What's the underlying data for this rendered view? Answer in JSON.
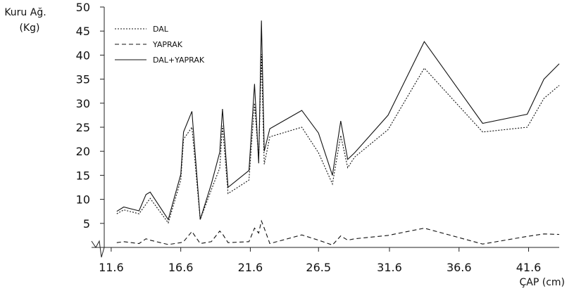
{
  "chart_data": {
    "type": "line",
    "ylabel_line1": "Kuru Ağ.",
    "ylabel_line2": "(Kg)",
    "xlabel": "ÇAP (cm)",
    "ylim": [
      0,
      50
    ],
    "xlim": [
      11.1,
      43.8
    ],
    "yticks": [
      5,
      10,
      15,
      20,
      25,
      30,
      35,
      40,
      45,
      50
    ],
    "xticks": [
      11.6,
      16.6,
      21.6,
      26.5,
      31.6,
      36.6,
      41.6
    ],
    "xtick_labels": [
      "11.6",
      "16.6",
      "21.6",
      "26.5",
      "31.6",
      "36.6",
      "41.6"
    ],
    "legend_position": "top-left",
    "series": [
      {
        "name": "DAL",
        "dash": "2,2",
        "x": [
          12.0,
          12.5,
          13.6,
          14.1,
          14.4,
          15.7,
          16.6,
          16.8,
          17.4,
          18.0,
          18.8,
          19.4,
          19.6,
          20.0,
          21.5,
          21.9,
          22.2,
          22.4,
          22.6,
          23.0,
          25.3,
          26.5,
          27.5,
          28.1,
          28.6,
          29.1,
          31.5,
          34.1,
          38.3,
          41.5,
          42.7,
          43.8
        ],
        "y": [
          7.0,
          7.8,
          7.0,
          9.0,
          10.2,
          5.1,
          14.0,
          22.5,
          25.0,
          5.8,
          12.0,
          16.5,
          25.3,
          11.2,
          14.0,
          30.0,
          18.3,
          40.2,
          17.3,
          23.0,
          25.0,
          19.7,
          13.2,
          23.3,
          16.6,
          18.8,
          24.5,
          37.3,
          24.0,
          25.0,
          31.0,
          33.7
        ]
      },
      {
        "name": "YAPRAK",
        "dash": "6,4",
        "x": [
          12.0,
          12.5,
          13.6,
          14.1,
          14.4,
          15.7,
          16.6,
          16.8,
          17.4,
          18.0,
          18.8,
          19.4,
          19.6,
          20.0,
          21.5,
          21.9,
          22.2,
          22.4,
          22.6,
          23.0,
          25.3,
          26.5,
          27.5,
          28.1,
          28.6,
          29.1,
          31.5,
          34.1,
          38.3,
          41.5,
          42.7,
          43.8
        ],
        "y": [
          1.0,
          1.2,
          0.8,
          1.8,
          1.5,
          0.6,
          1.0,
          1.2,
          3.3,
          0.8,
          1.2,
          3.4,
          2.8,
          1.0,
          1.2,
          4.0,
          3.0,
          5.5,
          4.0,
          0.8,
          2.6,
          1.5,
          0.5,
          2.4,
          1.5,
          1.8,
          2.5,
          4.0,
          0.7,
          2.3,
          2.8,
          2.7
        ]
      },
      {
        "name": "DAL+YAPRAK",
        "dash": "",
        "x": [
          12.0,
          12.5,
          13.6,
          14.1,
          14.4,
          15.7,
          16.6,
          16.8,
          17.4,
          18.0,
          18.8,
          19.4,
          19.6,
          20.0,
          21.5,
          21.9,
          22.2,
          22.4,
          22.6,
          23.0,
          25.3,
          26.5,
          27.5,
          28.1,
          28.6,
          29.1,
          31.5,
          34.1,
          38.3,
          41.5,
          42.7,
          43.8
        ],
        "y": [
          7.5,
          8.4,
          7.6,
          11.0,
          11.5,
          5.8,
          15.2,
          24.0,
          28.3,
          5.8,
          13.2,
          19.8,
          28.8,
          12.5,
          16.0,
          34.0,
          17.5,
          47.2,
          20.0,
          24.7,
          28.5,
          23.8,
          15.0,
          26.3,
          18.3,
          19.7,
          27.5,
          42.8,
          25.8,
          27.7,
          35.0,
          38.2
        ]
      }
    ]
  }
}
